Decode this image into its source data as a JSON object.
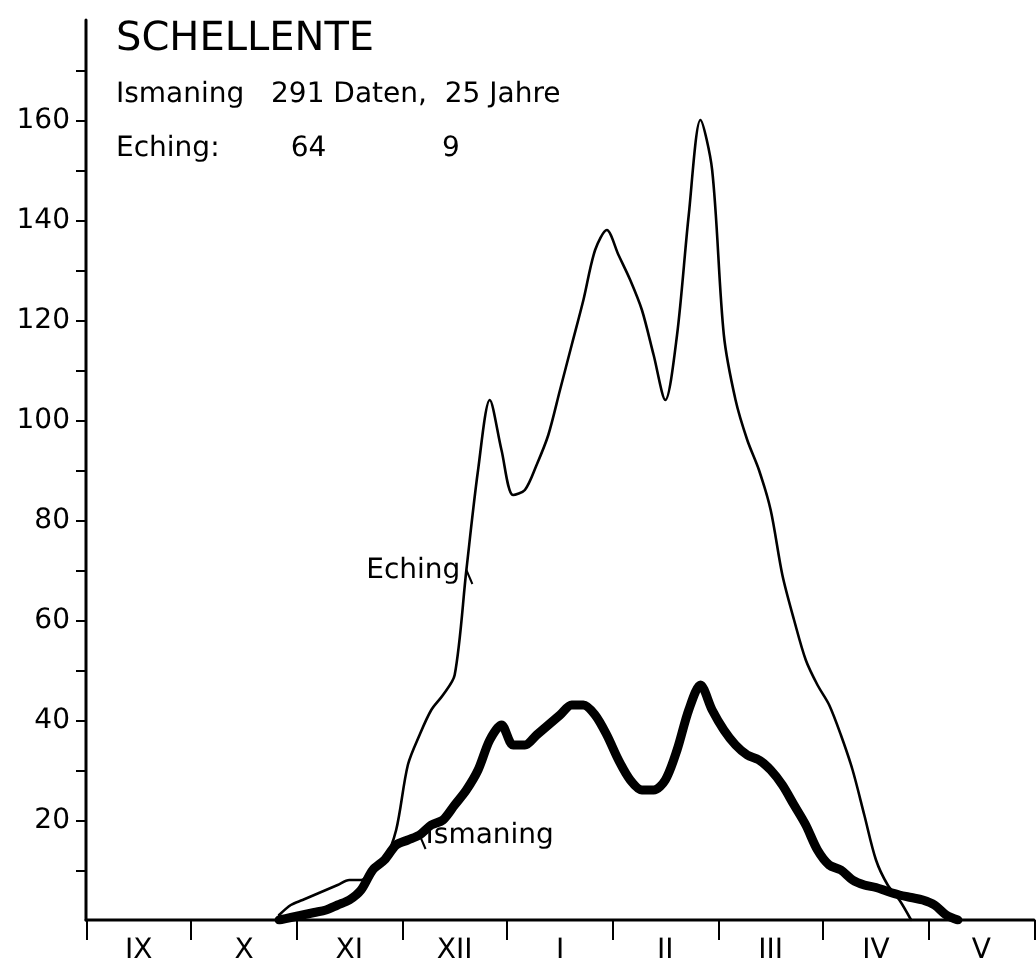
{
  "chart_data": {
    "type": "line",
    "title": "SCHELLENTE",
    "annotations": [
      "Ismaning   291 Daten,  25 Jahre",
      "Eching:        64             9"
    ],
    "categories": [
      null,
      null,
      null,
      null,
      "IX",
      null,
      null,
      null,
      null,
      null,
      null,
      null,
      null,
      "X",
      null,
      null,
      null,
      null,
      null,
      null,
      null,
      null,
      "XI",
      null,
      null,
      null,
      null,
      null,
      null,
      null,
      null,
      "XII",
      null,
      null,
      null,
      null,
      null,
      null,
      null,
      null,
      "I",
      null,
      null,
      null,
      null,
      null,
      null,
      null,
      null,
      "II",
      null,
      null,
      null,
      null,
      null,
      null,
      null,
      null,
      "III",
      null,
      null,
      null,
      null,
      null,
      null,
      null,
      null,
      "IV",
      null,
      null,
      null,
      null,
      null,
      null,
      null,
      null,
      "V",
      null,
      null,
      null,
      null
    ],
    "ylim": [
      0,
      180
    ],
    "yticks": [
      {
        "value": 10,
        "label": null
      },
      20,
      {
        "value": 30,
        "label": null
      },
      40,
      {
        "value": 50,
        "label": null
      },
      60,
      {
        "value": 70,
        "label": null
      },
      80,
      {
        "value": 90,
        "label": null
      },
      100,
      {
        "value": 110,
        "label": null
      },
      120,
      {
        "value": 130,
        "label": null
      },
      140,
      {
        "value": 150,
        "label": null
      },
      160,
      {
        "value": 170,
        "label": null
      }
    ],
    "grid": false,
    "marker": "none",
    "line_style": "solid",
    "series": [
      {
        "name": "Eching",
        "color": "#000000",
        "values": [
          null,
          null,
          null,
          null,
          null,
          null,
          null,
          null,
          null,
          null,
          null,
          null,
          null,
          null,
          null,
          null,
          1,
          3,
          4,
          5,
          6,
          7,
          8,
          8,
          10,
          12,
          18,
          31,
          37,
          42,
          45,
          49,
          70,
          90,
          104,
          94,
          85,
          86,
          91,
          97,
          106,
          115,
          124,
          134,
          138,
          133,
          128,
          122,
          113,
          104,
          117,
          141,
          160,
          150,
          117,
          104,
          96,
          90,
          82,
          69,
          60,
          52,
          47,
          43,
          37,
          30,
          21,
          12,
          7,
          4,
          0,
          null,
          null,
          null,
          null,
          null,
          null,
          null,
          null,
          null,
          null
        ]
      },
      {
        "name": "Ismaning",
        "color": "#000000",
        "values": [
          null,
          null,
          null,
          null,
          null,
          null,
          null,
          null,
          null,
          null,
          null,
          null,
          null,
          null,
          null,
          null,
          0,
          0.5,
          1,
          1.5,
          2,
          3,
          4,
          6,
          10,
          12,
          15,
          16,
          17,
          19,
          20,
          23,
          26,
          30,
          36,
          39,
          35,
          35,
          37,
          39,
          41,
          43,
          43,
          41,
          37,
          32,
          28,
          26,
          26,
          28,
          34,
          42,
          47,
          42,
          38,
          35,
          33,
          32,
          30,
          27,
          23,
          19,
          14,
          11,
          10,
          8,
          7,
          6.5,
          5.7,
          5,
          4.5,
          4,
          3,
          1,
          0,
          null,
          null,
          null,
          null,
          null,
          null
        ]
      }
    ]
  }
}
